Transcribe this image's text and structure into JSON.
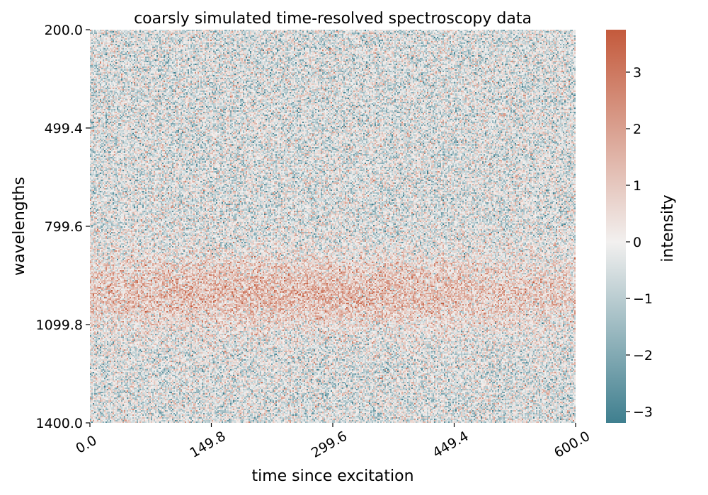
{
  "chart_data": {
    "type": "heatmap",
    "title": "coarsly simulated time-resolved spectroscopy data",
    "xlabel": "time since excitation",
    "ylabel": "wavelengths",
    "colorbar_label": "intensity",
    "x_range": [
      0.0,
      600.0
    ],
    "y_range": [
      200.0,
      1400.0
    ],
    "x_ticks": [
      "0.0",
      "149.8",
      "299.6",
      "449.4",
      "600.0"
    ],
    "y_ticks": [
      "200.0",
      "499.4",
      "799.6",
      "1099.8",
      "1400.0"
    ],
    "colorbar_range": [
      -3.2,
      3.75
    ],
    "colorbar_ticks": [
      {
        "value": 3,
        "label": "3"
      },
      {
        "value": 2,
        "label": "2"
      },
      {
        "value": 1,
        "label": "1"
      },
      {
        "value": 0,
        "label": "0"
      },
      {
        "value": -1,
        "label": "−1"
      },
      {
        "value": -2,
        "label": "−2"
      },
      {
        "value": -3,
        "label": "−3"
      }
    ],
    "colormap": {
      "low": "#3f7f8f",
      "mid": "#f2f0ef",
      "high": "#c45a3c"
    },
    "x_tick_rotation_deg": 30,
    "grid": false,
    "signal": {
      "description_free": true,
      "band_center_wavelength": 1000,
      "band_width_wavelength": 110,
      "peak_time": 250,
      "peak_intensity": 1.6,
      "background_mean": -0.3,
      "noise_std": 1.0
    }
  }
}
